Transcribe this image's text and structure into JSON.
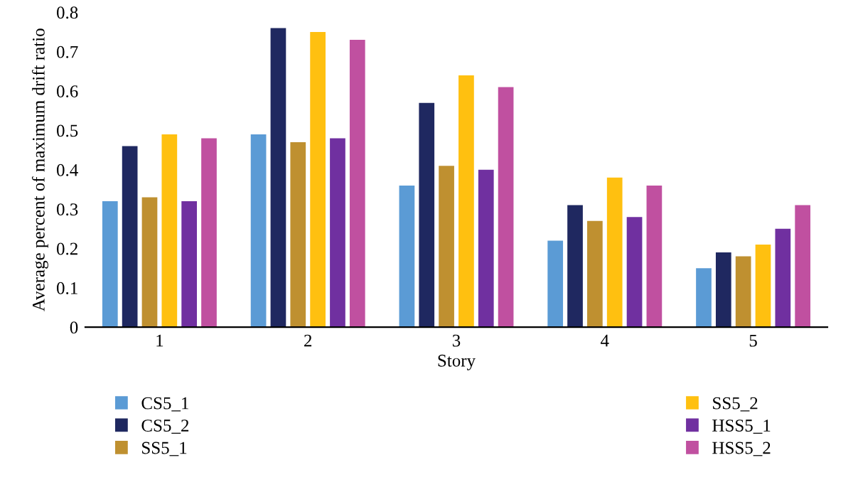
{
  "chart_data": {
    "type": "bar",
    "xlabel": "Story",
    "ylabel": "Average percent of maximum drift ratio",
    "categories": [
      "1",
      "2",
      "3",
      "4",
      "5"
    ],
    "series": [
      {
        "name": "CS5_1",
        "color": "#5b9bd5",
        "values": [
          0.32,
          0.49,
          0.36,
          0.22,
          0.15
        ]
      },
      {
        "name": "CS5_2",
        "color": "#1f2860",
        "values": [
          0.46,
          0.76,
          0.57,
          0.31,
          0.19
        ]
      },
      {
        "name": "SS5_1",
        "color": "#bf9030",
        "values": [
          0.33,
          0.47,
          0.41,
          0.27,
          0.18
        ]
      },
      {
        "name": "SS5_2",
        "color": "#ffc010",
        "values": [
          0.49,
          0.75,
          0.64,
          0.38,
          0.21
        ]
      },
      {
        "name": "HSS5_1",
        "color": "#7030a0",
        "values": [
          0.32,
          0.48,
          0.4,
          0.28,
          0.25
        ]
      },
      {
        "name": "HSS5_2",
        "color": "#c050a0",
        "values": [
          0.48,
          0.73,
          0.61,
          0.36,
          0.31
        ]
      }
    ],
    "ylim": [
      0,
      0.8
    ],
    "yticks": [
      0,
      0.1,
      0.2,
      0.3,
      0.4,
      0.5,
      0.6,
      0.7,
      0.8
    ],
    "grid": false,
    "legend": "bottom"
  }
}
